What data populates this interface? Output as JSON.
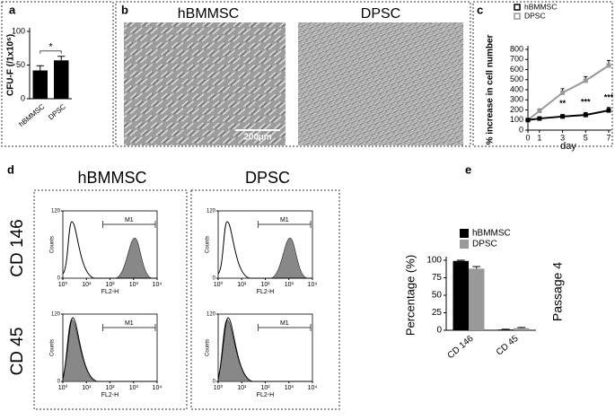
{
  "panel_labels": [
    "a",
    "b",
    "c",
    "d",
    "e"
  ],
  "chart_data": [
    {
      "type": "bar",
      "ylabel": "CFU-F (/1x10⁶)",
      "categories": [
        "hBMMSC",
        "DPSC"
      ],
      "values": [
        42,
        57
      ],
      "errors": [
        7,
        6
      ],
      "color": "#000000",
      "ylim": [
        0,
        100
      ],
      "yticks": [
        0,
        50,
        100
      ],
      "annotations": [
        "*"
      ]
    },
    {
      "type": "line",
      "ylabel": "% increase in cell number",
      "xlabel": "day",
      "x": [
        0,
        1,
        3,
        5,
        7
      ],
      "series": [
        {
          "name": "hBMMSC",
          "color": "#000000",
          "values": [
            100,
            115,
            135,
            150,
            195
          ],
          "errors": [
            10,
            15,
            20,
            25,
            30
          ]
        },
        {
          "name": "DPSC",
          "color": "#999999",
          "values": [
            100,
            190,
            370,
            490,
            640
          ],
          "errors": [
            10,
            20,
            40,
            40,
            50
          ]
        }
      ],
      "xlim": [
        0,
        7
      ],
      "ylim": [
        0,
        800
      ],
      "xticks": [
        0,
        1,
        3,
        5,
        7
      ],
      "yticks": [
        0,
        100,
        200,
        300,
        400,
        500,
        600,
        700,
        800
      ],
      "annotations": [
        "**",
        "***",
        "***"
      ]
    },
    {
      "type": "bar",
      "ylabel": "Percentage (%)",
      "categories": [
        "CD 146",
        "CD 45"
      ],
      "series": [
        {
          "name": "hBMMSC",
          "color": "#000000",
          "values": [
            99,
            1
          ],
          "errors": [
            1,
            0.5
          ]
        },
        {
          "name": "DPSC",
          "color": "#999999",
          "values": [
            88,
            3
          ],
          "errors": [
            3,
            1
          ]
        }
      ],
      "ylim": [
        0,
        100
      ],
      "yticks": [
        0,
        25,
        50,
        75,
        100
      ],
      "side_label": "Passage 4"
    }
  ],
  "panel_b": {
    "titles": [
      "hBMMSC",
      "DPSC"
    ],
    "scale_bar": "200µm"
  },
  "panel_d": {
    "columns": [
      "hBMMSC",
      "DPSC"
    ],
    "rows": [
      "CD 146",
      "CD 45"
    ],
    "ylabel": "Counts",
    "xlabel": "FL2-H",
    "gate": "M1",
    "yticks": [
      0,
      120
    ],
    "xticks": [
      {
        "value": 0,
        "label": "10⁰"
      },
      {
        "value": 1,
        "label": "10¹"
      },
      {
        "value": 2,
        "label": "10²"
      },
      {
        "value": 3,
        "label": "10³"
      },
      {
        "value": 4,
        "label": "10⁴"
      }
    ]
  }
}
